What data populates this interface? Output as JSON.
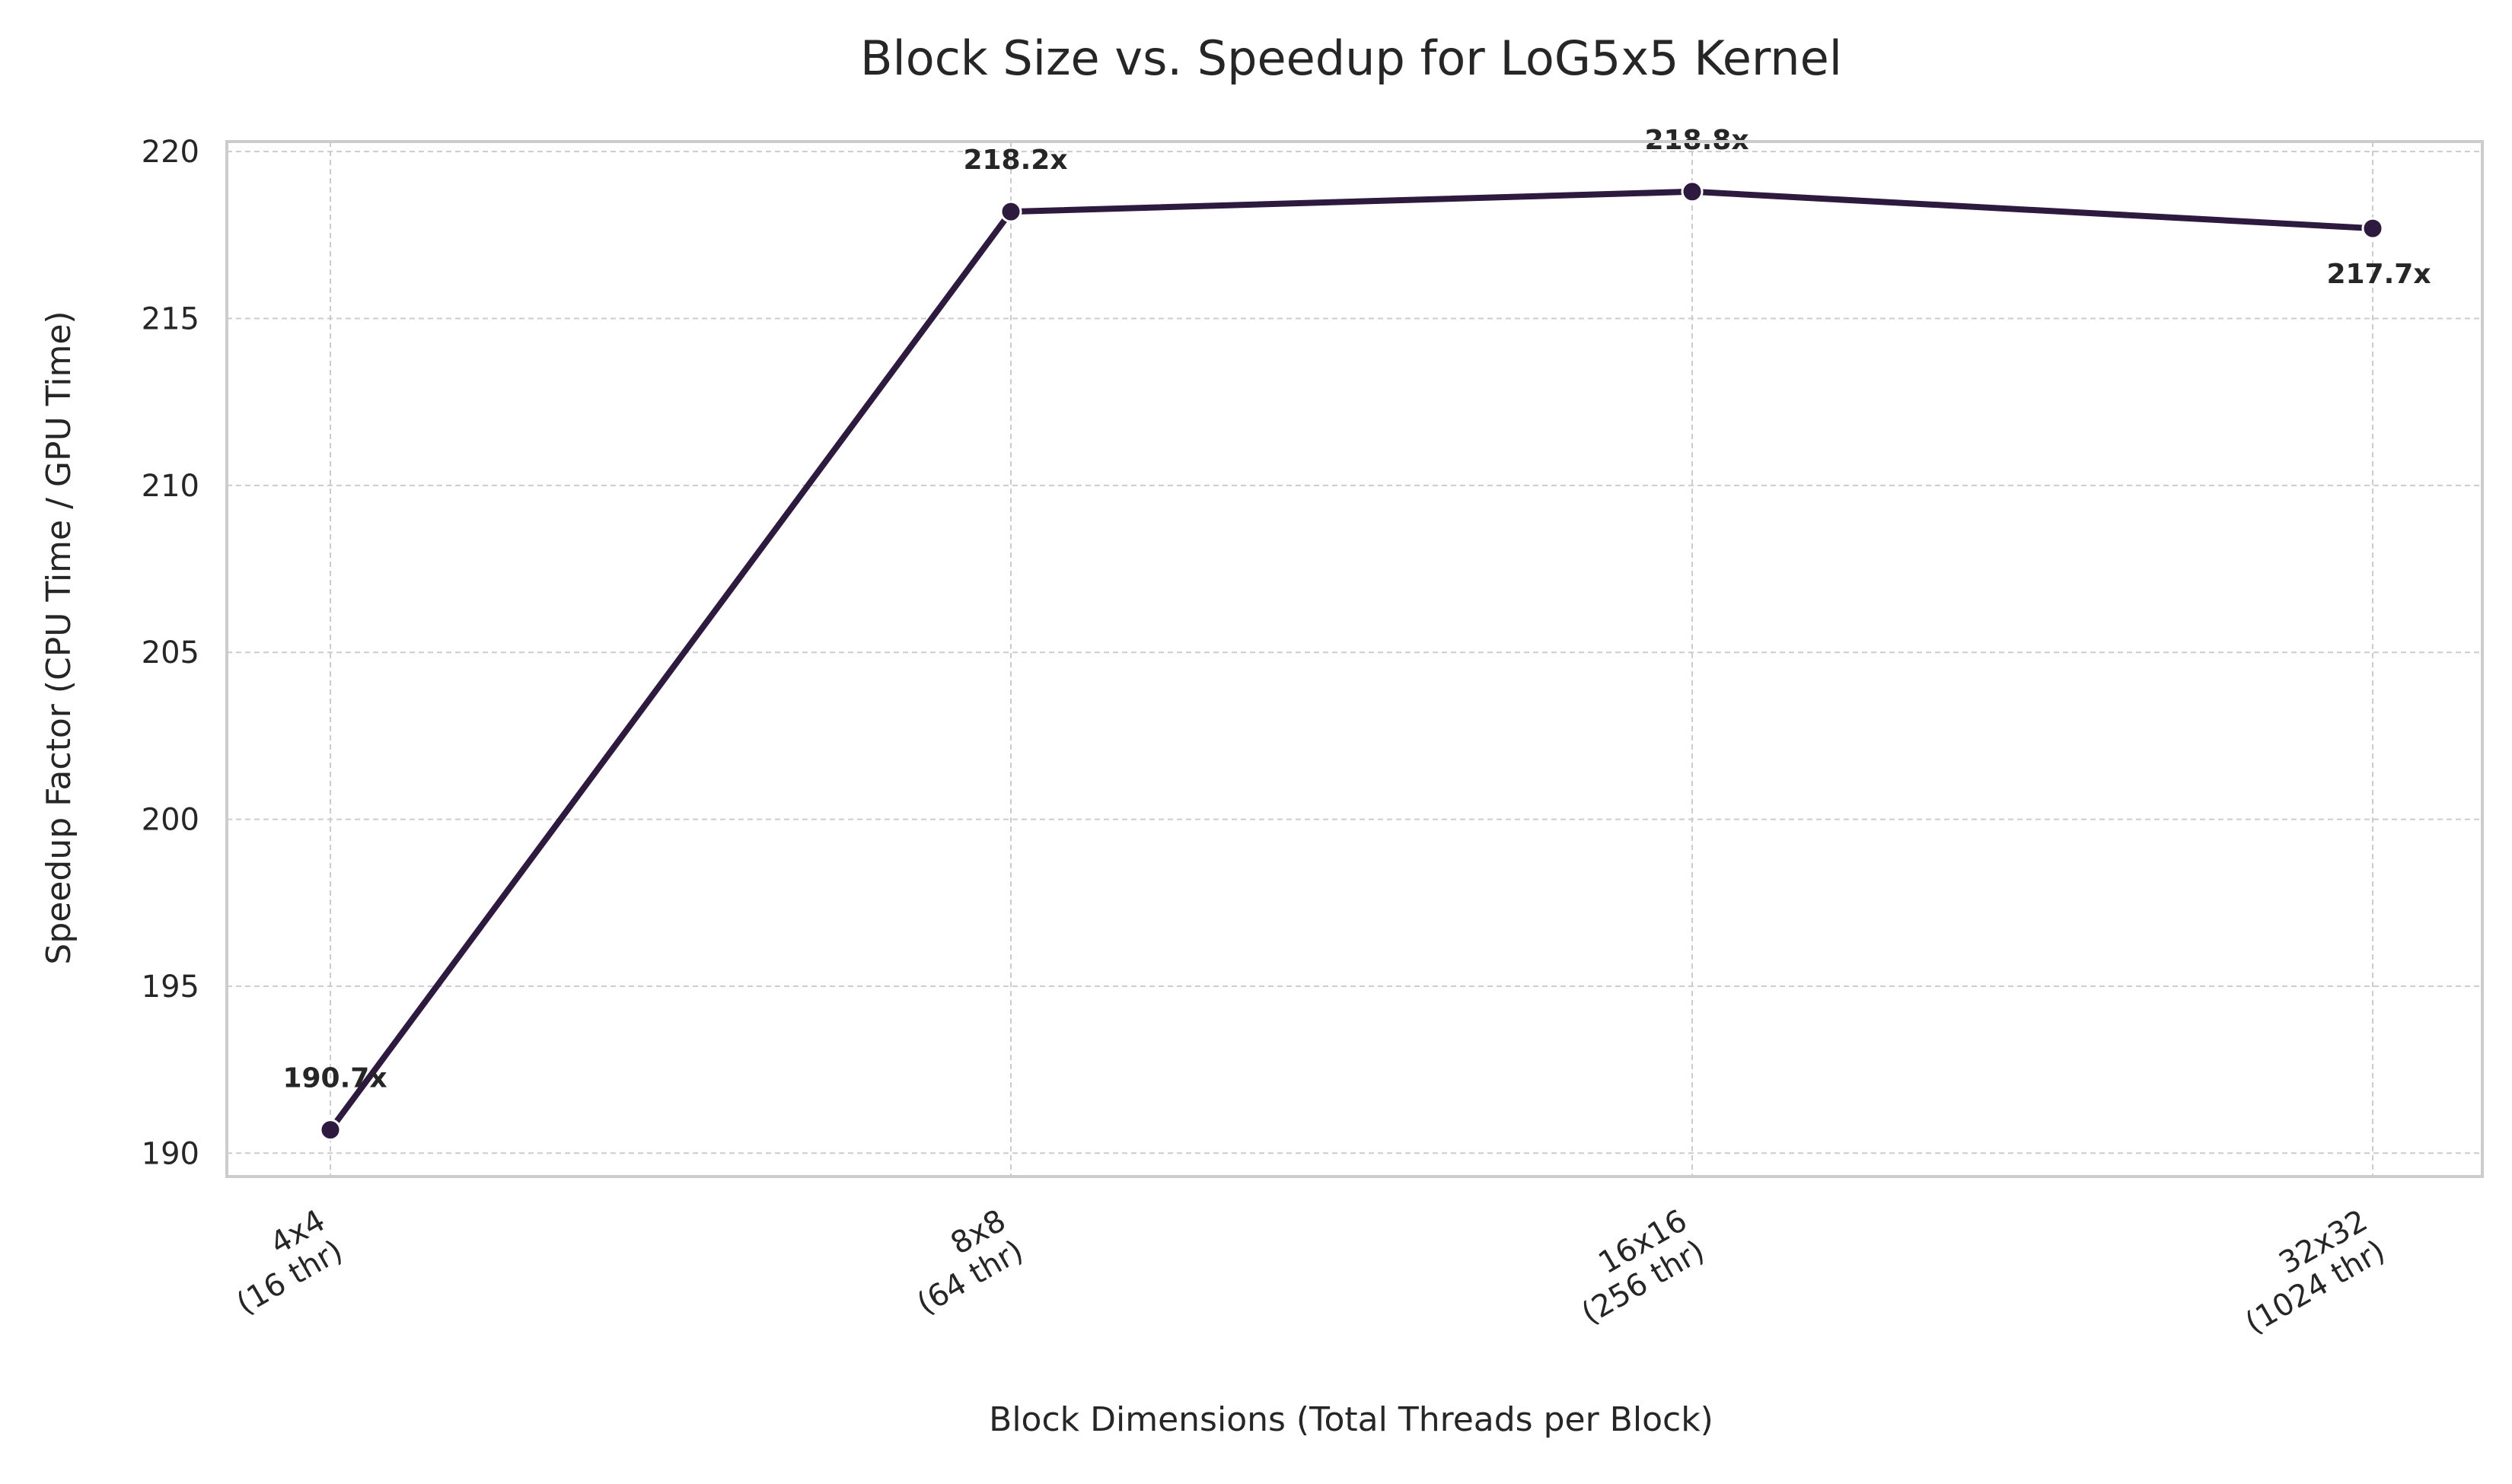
{
  "chart_data": {
    "type": "line",
    "title": "Block Size vs. Speedup for LoG5x5 Kernel",
    "xlabel": "Block Dimensions (Total Threads per Block)",
    "ylabel": "Speedup Factor (CPU Time / GPU Time)",
    "categories": [
      [
        "4x4",
        "(16 thr)"
      ],
      [
        "8x8",
        "(64 thr)"
      ],
      [
        "16x16",
        "(256 thr)"
      ],
      [
        "32x32",
        "(1024 thr)"
      ]
    ],
    "series": [
      {
        "values": [
          190.7,
          218.2,
          218.8,
          217.7
        ],
        "data_labels": [
          "190.7x",
          "218.2x",
          "218.8x",
          "217.7x"
        ],
        "color": "#2d1a3e"
      }
    ],
    "ylim": [
      189.3,
      220.3
    ],
    "yticks": [
      "190",
      "195",
      "200",
      "205",
      "210",
      "215",
      "220"
    ],
    "grid": true,
    "legend": "none"
  }
}
